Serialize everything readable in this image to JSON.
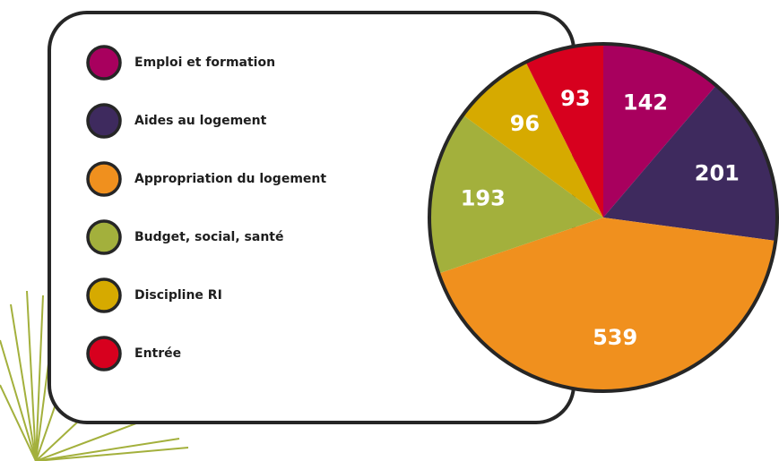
{
  "chart_data": {
    "type": "pie",
    "categories": [
      "Emploi et formation",
      "Aides au logement",
      "Appropriation du logement",
      "Budget, social, santé",
      "Discipline RI",
      "Entrée"
    ],
    "values": [
      142,
      201,
      539,
      193,
      96,
      93
    ],
    "colors": [
      "#a8005e",
      "#3e2a5e",
      "#f0901e",
      "#a3b03c",
      "#d6aa00",
      "#d7001e"
    ],
    "legend": "left"
  }
}
